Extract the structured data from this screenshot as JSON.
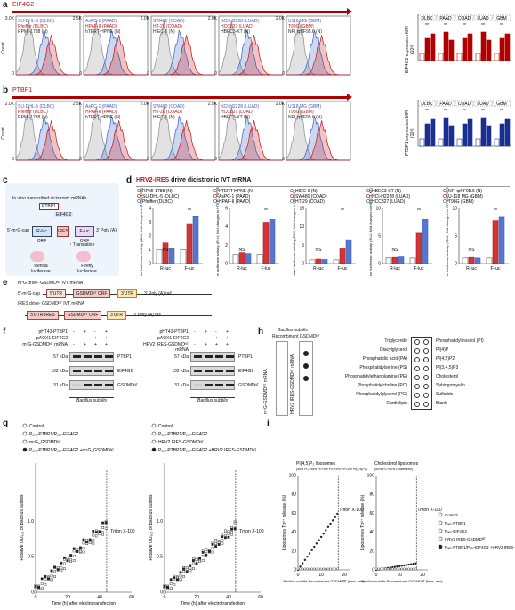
{
  "colors": {
    "blue": "#3b5fc2",
    "red": "#c41414",
    "gray": "#8a8a8a",
    "darkred": "#b10000",
    "navy": "#1b2f8f"
  },
  "panel_a": {
    "label": "a",
    "gene": "EIF4G2",
    "y_label": "Count",
    "y_ticks": [
      "3.0K",
      "2.5K",
      "2.0K",
      "1.5K",
      "1.0K",
      "500",
      "0"
    ],
    "hists": [
      {
        "legend": [
          "SU-DHL-5 (DLBC)",
          "Pfeiffer (DLBC)",
          "RPMI-1788 (N)"
        ],
        "ymax": "3.0K"
      },
      {
        "legend": [
          "AsPC-1 (PAAD)",
          "HPAF-II (PAAD)",
          "hTERT-HPNE (N)"
        ],
        "ymax": "2.5K"
      },
      {
        "legend": [
          "SW480 (COAD)",
          "HT-29 (COAD)",
          "HIEC-6 (N)"
        ],
        "ymax": "2.0K"
      },
      {
        "legend": [
          "NCI-H2228 (LUAD)",
          "HCC827 (LUAD)",
          "HBEC3-KT (N)"
        ],
        "ymax": "2.0K"
      },
      {
        "legend": [
          "U118 MG (GBM)",
          "T98G (GBM)",
          "NFI iqNF95.6 (N)"
        ],
        "ymax": "2.0K"
      }
    ],
    "bar_ylabel": "EIF4G2 expression MFI (10³)",
    "groups": [
      "DLBC",
      "PAAD",
      "COAD",
      "LUAD",
      "GBM"
    ],
    "sig": "**"
  },
  "panel_b": {
    "label": "b",
    "gene": "PTBP1",
    "y_label": "Count",
    "hists": [
      {
        "legend": [
          "SU-DHL-5 (DLBC)",
          "Pfeiffer (DLBC)",
          "RPMI-1788 (N)"
        ],
        "ymax": "2.0K"
      },
      {
        "legend": [
          "AsPC-1 (PAAD)",
          "HPAF-II (PAAD)",
          "hTERT-HPNE (N)"
        ],
        "ymax": "2.5K"
      },
      {
        "legend": [
          "SW480 (COAD)",
          "HT-29 (COAD)",
          "HIEC-6 (N)"
        ],
        "ymax": "2.0K"
      },
      {
        "legend": [
          "NCI-H2228 (LUAD)",
          "HCC827 (LUAD)",
          "HBEC3-KT (N)"
        ],
        "ymax": "2.5K"
      },
      {
        "legend": [
          "U118 MG (GBM)",
          "T98G (GBM)",
          "NFI iqNF95.6 (N)"
        ],
        "ymax": "2.0K"
      }
    ],
    "bar_ylabel": "PTBP1 expression MFI (10³)",
    "groups": [
      "DLBC",
      "PAAD",
      "COAD",
      "LUAD",
      "GBM"
    ]
  },
  "panel_c": {
    "label": "c",
    "title": "In vitro transcribed dicistronic mRNAs",
    "ptbp1": "PTBP1",
    "eif4g2": "EIF4G2",
    "cap": "5′-m⁷G-cap",
    "rluc": "R-luc ORF",
    "ires": "IRES",
    "fluc": "F-luc ORF",
    "polya": "3′ Poly (A)",
    "translation": "↑ Translation",
    "renilla": "Renilla luciferase",
    "firefly": "Firefly luciferase"
  },
  "panel_d": {
    "label": "d",
    "title_colored": "HRV2-IRES",
    "title_rest": " drive dicistronic IVT mRNA",
    "legends": [
      [
        "RPMI-1788 (N)",
        "SU-DHL-5 (DLBC)",
        "Pfeiffer (DLBC)"
      ],
      [
        "hTERT-HPNE (N)",
        "AsPC-1 (PAAD)",
        "HPAF-II (PAAD)"
      ],
      [
        "HIEC-6 (N)",
        "SW480 (COAD)",
        "HT-29 (COAD)"
      ],
      [
        "HBEC3-KT (N)",
        "NCI-H2228 (LUAD)",
        "HCC827 (LUAD)"
      ],
      [
        "NFI ipNF95.6 (N)",
        "U-118 MG (GBM)",
        "T98G (GBM)"
      ]
    ],
    "ylabels": [
      "Relative luciferase activity (RLU; fold changes to RPMI-1788)",
      "Relative luciferase activity (RLU; fold changes to hTERT-HPNE)",
      "Relative luciferase activity (RLU; fold changes to HIEC-6)",
      "Relative luciferase activity (RLU; fold changes to HBEC3-KT)",
      "Relative luciferase activity (RLU; fold changes to NFI ipNF95.6)"
    ],
    "xcats": [
      "R-luc",
      "F-luc"
    ],
    "chart_data": [
      {
        "type": "bar",
        "categories": [
          "R-luc",
          "F-luc"
        ],
        "series": [
          {
            "name": "RPMI-1788 (N)",
            "values": [
              1,
              1
            ]
          },
          {
            "name": "SU-DHL-5 (DLBC)",
            "values": [
              1.5,
              2.9
            ]
          },
          {
            "name": "Pfeiffer (DLBC)",
            "values": [
              1.1,
              3.4
            ]
          }
        ],
        "ylim": [
          0,
          4
        ],
        "ticks": [
          "0",
          "1",
          "2",
          "3",
          "4"
        ]
      },
      {
        "type": "bar",
        "categories": [
          "R-luc",
          "F-luc"
        ],
        "series": [
          {
            "name": "hTERT-HPNE (N)",
            "values": [
              1,
              1
            ]
          },
          {
            "name": "AsPC-1 (PAAD)",
            "values": [
              1.2,
              4.5
            ]
          },
          {
            "name": "HPAF-II (PAAD)",
            "values": [
              1.1,
              4.8
            ]
          }
        ],
        "ylim": [
          0,
          6
        ],
        "ticks": [
          "0",
          "2",
          "4",
          "6"
        ]
      },
      {
        "type": "bar",
        "categories": [
          "R-luc",
          "F-luc"
        ],
        "series": [
          {
            "name": "HIEC-6 (N)",
            "values": [
              1,
              1
            ]
          },
          {
            "name": "SW480 (COAD)",
            "values": [
              1.2,
              4.0
            ]
          },
          {
            "name": "HT-29 (COAD)",
            "values": [
              1.1,
              6.5
            ]
          }
        ],
        "ylim": [
          0,
          15
        ],
        "ticks": [
          "0",
          "5",
          "10",
          "15"
        ]
      },
      {
        "type": "bar",
        "categories": [
          "R-luc",
          "F-luc"
        ],
        "series": [
          {
            "name": "HBEC3-KT (N)",
            "values": [
              1,
              1
            ]
          },
          {
            "name": "NCI-H2228 (LUAD)",
            "values": [
              1.1,
              5.5
            ]
          },
          {
            "name": "HCC827 (LUAD)",
            "values": [
              1.2,
              8.0
            ]
          }
        ],
        "ylim": [
          0,
          10
        ],
        "ticks": [
          "0",
          "5",
          "10"
        ]
      },
      {
        "type": "bar",
        "categories": [
          "R-luc",
          "F-luc"
        ],
        "series": [
          {
            "name": "NFI ipNF95.6 (N)",
            "values": [
              1,
              1
            ]
          },
          {
            "name": "U-118 MG (GBM)",
            "values": [
              1.1,
              7.8
            ]
          },
          {
            "name": "T98G (GBM)",
            "values": [
              1.0,
              8.4
            ]
          }
        ],
        "ylim": [
          0,
          10
        ],
        "ticks": [
          "0",
          "5",
          "10"
        ]
      }
    ],
    "ns": "NS",
    "sig": "**"
  },
  "panel_e": {
    "label": "e",
    "line1": "m⁷G drive- GSDMDᴺᵀ IVT mRNA",
    "line2": "IRES drive- GSDMDᴺᵀ IVT mRNA",
    "cap": "5′-m⁷G-cap",
    "utr5": "5′UTR",
    "orf": "GSDMDᴺᵀ ORF",
    "utr3": "3′UTR",
    "polya": "3′ Poly (A) tail",
    "utr5ires": "5′UTR-IRES"
  },
  "panel_f": {
    "label": "f",
    "left_rows": [
      "pHT43-PTBP1",
      "pAOX1-EIF4G2",
      "m⁷G-GSDMDᴺᵀ mRNA"
    ],
    "left_marks": [
      [
        "-",
        "+",
        "-",
        "+"
      ],
      [
        "-",
        "-",
        "+",
        "+"
      ],
      [
        "-",
        "+",
        "+",
        "+"
      ]
    ],
    "right_rows": [
      "pHT43-PTBP1",
      "pAOX1-EIF4G2",
      "HRV2 IRES-GSDMDᴺᵀ mRNA"
    ],
    "right_marks": [
      [
        "-",
        "+",
        "-",
        "+"
      ],
      [
        "-",
        "-",
        "+",
        "+"
      ],
      [
        "-",
        "+",
        "+",
        "+"
      ]
    ],
    "kda": [
      "57 kDa",
      "102 kDa",
      "31 kDa"
    ],
    "proteins": [
      "PTBP1",
      "EIF4G2",
      "GSDMDᴺᵀ"
    ],
    "species": "Bacillus subtilis"
  },
  "panel_g": {
    "label": "g",
    "left_legend": [
      "Control",
      "Pₐₑₓ-PTBP1/Pₐₑₓ-EIF4G2",
      "m⁷G_GSDMDᴺᵀ",
      "Pₐₑₓ-PTBP1/Pₐₑₓ-EIF4G2 +m⁷G_GSDMDᴺᵀ"
    ],
    "right_legend": [
      "Control",
      "Pₐₑₓ-PTBP1/Pₐₑₓ-EIF4G2",
      "HRV2 IRES-GSDMDᴺᵀ",
      "Pₐₑₓ-PTBP1/Pₐₑₓ-EIF4G2 +HRV2 IRES-GSDMDᴺᵀ"
    ],
    "ylabel": "Relative OD₆₀₀ of Bacillus subtilis",
    "xlabel": "Time (h) after electrotransfection",
    "yticks": [
      "0",
      "0.5",
      "1.0"
    ],
    "xticks": [
      "0",
      "20",
      "40",
      "60"
    ],
    "triton": "Triton X-100"
  },
  "panel_h": {
    "label": "h",
    "species": "Bacillus subtilis",
    "recomb": "Recombinant GSDMDᴺᵀ",
    "strip1": "m⁷G-GSDMDᴺᵀ mRNA",
    "strip2": "HRV2 IRES-GSDMDᴺᵀ mRNA",
    "lipids_left": [
      "Triglyceride",
      "Diacylglycerol",
      "Phosphatidic acid (PA)",
      "Phosphatidylserine (PS)",
      "Phosphatidylethanolamine (PE)",
      "Phosphatidylcholine (PC)",
      "Phosphatidylglycerol (PG)",
      "Cardiolipin"
    ],
    "lipids_right": [
      "Phosphatidylinositol (PI)",
      "PI(4)P",
      "PI(4,5)P2",
      "PI(3,4,5)P3",
      "Cholesterol",
      "Sphingomyelin",
      "Sulfatide",
      "Blank"
    ]
  },
  "panel_i": {
    "label": "i",
    "lipo1": "PI(4,5)P₂ liposomes",
    "lipo1_sub": "(45% PC+35% PE+5% PS +5% PI+10% PI(4,5)P2)",
    "lipo2": "Cholesterol liposomes",
    "lipo2_sub": "(50% PC+50% Cholesterol)",
    "ylabel": "Liposomes Tb³⁺ release (%)",
    "xlabel": "Bacillus subtilis Recombinant GSDMDᴺᵀ (time, min)",
    "yticks": [
      "0",
      "20",
      "40",
      "60",
      "80",
      "100"
    ],
    "xticks": [
      "0",
      "10",
      "20"
    ],
    "triton": "Triton X-100",
    "legend": [
      "Control",
      "Pₐₑₓ-PTBP1",
      "Pₐₑₓ-EIF4G2",
      "HRV2 IRES-GSDMDᴺᵀ",
      "Pₐₑₓ-PTBP1/Pₐₑₓ-EIF4G2 +HRV2 IRES-GSDMDᴺᵀ"
    ]
  }
}
